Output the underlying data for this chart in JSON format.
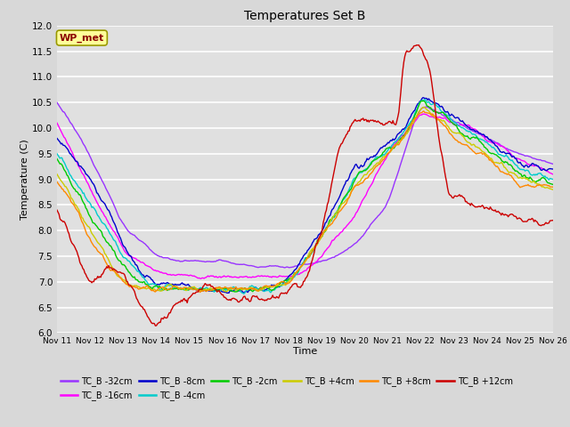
{
  "title": "Temperatures Set B",
  "xlabel": "Time",
  "ylabel": "Temperature (C)",
  "ylim": [
    6.0,
    12.0
  ],
  "yticks": [
    6.0,
    6.5,
    7.0,
    7.5,
    8.0,
    8.5,
    9.0,
    9.5,
    10.0,
    10.5,
    11.0,
    11.5,
    12.0
  ],
  "fig_bg": "#d8d8d8",
  "plot_bg": "#e0e0e0",
  "wp_met_label": "WP_met",
  "wp_met_color": "#8b0000",
  "wp_met_bg": "#ffff99",
  "legend_entries": [
    {
      "label": "TC_B -32cm",
      "color": "#9933ff"
    },
    {
      "label": "TC_B -16cm",
      "color": "#ff00ff"
    },
    {
      "label": "TC_B -8cm",
      "color": "#0000cc"
    },
    {
      "label": "TC_B -4cm",
      "color": "#00cccc"
    },
    {
      "label": "TC_B -2cm",
      "color": "#00cc00"
    },
    {
      "label": "TC_B +4cm",
      "color": "#cccc00"
    },
    {
      "label": "TC_B +8cm",
      "color": "#ff8800"
    },
    {
      "label": "TC_B +12cm",
      "color": "#cc0000"
    }
  ],
  "x_tick_labels": [
    "Nov 11",
    "Nov 12",
    "Nov 13",
    "Nov 14",
    "Nov 15",
    "Nov 16",
    "Nov 17",
    "Nov 18",
    "Nov 19",
    "Nov 20",
    "Nov 21",
    "Nov 22",
    "Nov 23",
    "Nov 24",
    "Nov 25",
    "Nov 26"
  ],
  "num_points": 500
}
